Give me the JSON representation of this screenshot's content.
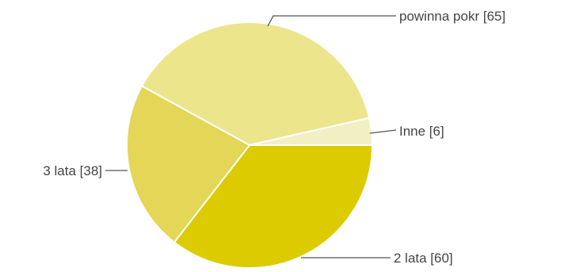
{
  "chart_data": {
    "type": "pie",
    "title": "",
    "slices": [
      {
        "label": "2 lata [60]",
        "value": 60,
        "color": "#dccb00"
      },
      {
        "label": "3 lata [38]",
        "value": 38,
        "color": "#e4d656"
      },
      {
        "label": "powinna pokr [65]",
        "value": 65,
        "color": "#ece58c"
      },
      {
        "label": "Inne [6]",
        "value": 6,
        "color": "#f3efc4"
      }
    ],
    "legend": "none",
    "labels": "outside-with-leader-lines"
  }
}
